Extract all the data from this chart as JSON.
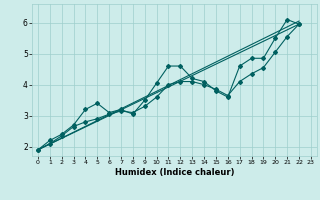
{
  "xlabel": "Humidex (Indice chaleur)",
  "ylabel": "",
  "bg_color": "#cdecea",
  "grid_color": "#9ecfcc",
  "line_color": "#006060",
  "xlim": [
    -0.5,
    23.5
  ],
  "ylim": [
    1.7,
    6.6
  ],
  "yticks": [
    2,
    3,
    4,
    5,
    6
  ],
  "xticks": [
    0,
    1,
    2,
    3,
    4,
    5,
    6,
    7,
    8,
    9,
    10,
    11,
    12,
    13,
    14,
    15,
    16,
    17,
    18,
    19,
    20,
    21,
    22,
    23
  ],
  "line1_x": [
    0,
    1,
    2,
    3,
    4,
    5,
    6,
    7,
    8,
    9,
    10,
    11,
    12,
    13,
    14,
    15,
    16,
    17,
    18,
    19,
    20,
    21,
    22
  ],
  "line1_y": [
    1.9,
    2.2,
    2.4,
    2.7,
    3.2,
    3.4,
    3.1,
    3.2,
    3.05,
    3.5,
    4.05,
    4.6,
    4.6,
    4.2,
    4.1,
    3.8,
    3.6,
    4.6,
    4.85,
    4.85,
    5.5,
    6.1,
    5.95
  ],
  "line2_x": [
    0,
    1,
    2,
    3,
    4,
    5,
    6,
    7,
    8,
    9,
    10,
    11,
    12,
    13,
    14,
    15,
    16,
    17,
    18,
    19,
    20,
    21,
    22
  ],
  "line2_y": [
    1.9,
    2.1,
    2.35,
    2.65,
    2.8,
    2.9,
    3.05,
    3.15,
    3.1,
    3.3,
    3.6,
    4.0,
    4.1,
    4.1,
    4.0,
    3.85,
    3.65,
    4.1,
    4.35,
    4.55,
    5.05,
    5.55,
    5.95
  ],
  "line3_x": [
    0,
    22
  ],
  "line3_y": [
    1.9,
    6.05
  ],
  "line4_x": [
    0,
    22
  ],
  "line4_y": [
    1.9,
    5.95
  ]
}
